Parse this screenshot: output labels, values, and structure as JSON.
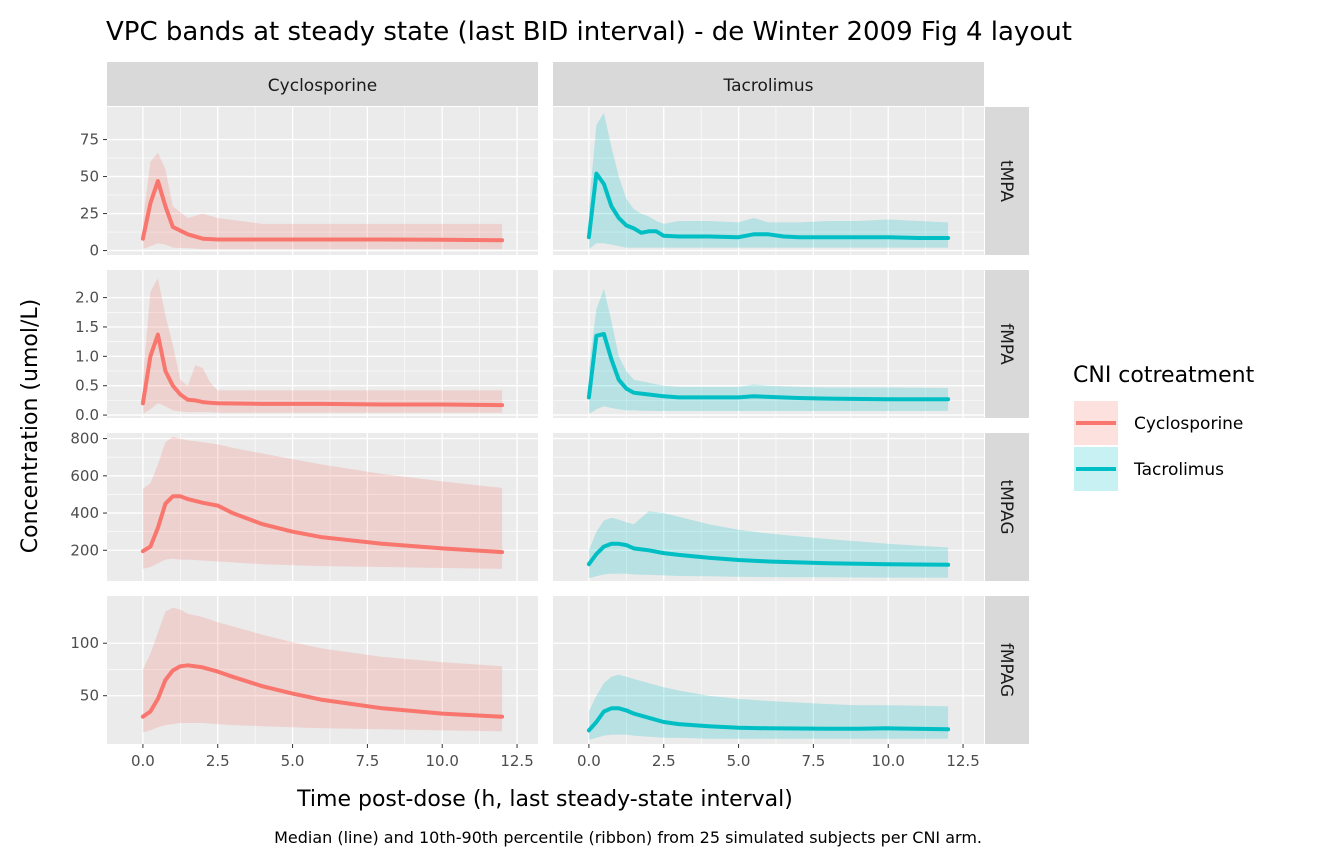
{
  "title": "VPC bands at steady state (last BID interval) - de Winter 2009 Fig 4 layout",
  "caption": "Median (line) and 10th-90th percentile (ribbon) from 25 simulated subjects per CNI arm.",
  "chart_data": {
    "type": "line",
    "xlabel": "Time post-dose (h, last steady-state interval)",
    "ylabel": "Concentration (umol/L)",
    "xlim": [
      -1.2,
      13.2
    ],
    "x_ticks": [
      0,
      2.5,
      5,
      7.5,
      10,
      12.5
    ],
    "x_tick_labels": [
      "0.0",
      "2.5",
      "5.0",
      "7.5",
      "10.0",
      "12.5"
    ],
    "columns": [
      "Cyclosporine",
      "Tacrolimus"
    ],
    "rows": [
      {
        "label": "tMPA",
        "ylim": [
          -3,
          97
        ],
        "ticks": [
          0,
          25,
          50,
          75
        ],
        "tick_labels": [
          "0",
          "25",
          "50",
          "75"
        ]
      },
      {
        "label": "fMPA",
        "ylim": [
          -0.05,
          2.47
        ],
        "ticks": [
          0,
          0.5,
          1.0,
          1.5,
          2.0
        ],
        "tick_labels": [
          "0.0",
          "0.5",
          "1.0",
          "1.5",
          "2.0"
        ]
      },
      {
        "label": "tMPAG",
        "ylim": [
          35,
          830
        ],
        "ticks": [
          200,
          400,
          600,
          800
        ],
        "tick_labels": [
          "200",
          "400",
          "600",
          "800"
        ]
      },
      {
        "label": "fMPAG",
        "ylim": [
          4,
          145
        ],
        "ticks": [
          50,
          100
        ],
        "tick_labels": [
          "50",
          "100"
        ]
      }
    ],
    "legend": {
      "title": "CNI cotreatment",
      "position": "right",
      "entries": [
        {
          "label": "Cyclosporine",
          "color": "#F8766D"
        },
        {
          "label": "Tacrolimus",
          "color": "#00BFC4"
        }
      ]
    },
    "series": [
      {
        "name": "Cyclosporine",
        "analyte": "tMPA",
        "color": "#F8766D",
        "x": [
          0,
          0.25,
          0.5,
          0.75,
          1.0,
          1.5,
          2.0,
          2.5,
          4,
          6,
          8,
          10,
          12
        ],
        "median": [
          8,
          32,
          47,
          30,
          16,
          11,
          8,
          7.5,
          7.5,
          7.5,
          7.5,
          7.3,
          7
        ],
        "p10": [
          1,
          3,
          5,
          4,
          2,
          1.5,
          1,
          1,
          1,
          1,
          1,
          1,
          1
        ],
        "p90": [
          20,
          60,
          66,
          55,
          30,
          22,
          25,
          22,
          18,
          18,
          18,
          18,
          18
        ]
      },
      {
        "name": "Tacrolimus",
        "analyte": "tMPA",
        "color": "#00BFC4",
        "x": [
          0,
          0.25,
          0.5,
          0.75,
          1.0,
          1.25,
          1.5,
          1.75,
          2.0,
          2.25,
          2.5,
          3,
          4,
          5,
          5.5,
          6,
          6.5,
          7,
          8,
          9,
          10,
          11,
          12
        ],
        "median": [
          9,
          52,
          45,
          30,
          22,
          17,
          15,
          12,
          13,
          13,
          10,
          9.5,
          9.5,
          9,
          11,
          11,
          9.5,
          9,
          9,
          9,
          9,
          8.5,
          8.5
        ],
        "p10": [
          1,
          5,
          5,
          4,
          3,
          2,
          2,
          2,
          2,
          2,
          2,
          2,
          2,
          2,
          2,
          2,
          2,
          2,
          2,
          2,
          2,
          2,
          2
        ],
        "p90": [
          30,
          85,
          93,
          70,
          50,
          35,
          28,
          25,
          23,
          20,
          18,
          20,
          20,
          19,
          22,
          19,
          19,
          19,
          20,
          20,
          21,
          20,
          19
        ]
      },
      {
        "name": "Cyclosporine",
        "analyte": "fMPA",
        "color": "#F8766D",
        "x": [
          0,
          0.25,
          0.5,
          0.75,
          1.0,
          1.25,
          1.5,
          1.75,
          2.0,
          2.25,
          2.5,
          4,
          6,
          8,
          10,
          12
        ],
        "median": [
          0.2,
          1.0,
          1.37,
          0.75,
          0.5,
          0.35,
          0.26,
          0.25,
          0.22,
          0.21,
          0.2,
          0.19,
          0.19,
          0.18,
          0.18,
          0.17
        ],
        "p10": [
          0.02,
          0.1,
          0.2,
          0.15,
          0.08,
          0.06,
          0.05,
          0.05,
          0.05,
          0.05,
          0.04,
          0.04,
          0.04,
          0.04,
          0.04,
          0.04
        ],
        "p90": [
          0.6,
          2.1,
          2.33,
          1.7,
          1.2,
          0.6,
          0.5,
          0.85,
          0.8,
          0.55,
          0.42,
          0.42,
          0.42,
          0.42,
          0.42,
          0.42
        ]
      },
      {
        "name": "Tacrolimus",
        "analyte": "fMPA",
        "color": "#00BFC4",
        "x": [
          0,
          0.25,
          0.5,
          0.75,
          1.0,
          1.25,
          1.5,
          2.0,
          2.5,
          3,
          4,
          5,
          5.5,
          6,
          7,
          8,
          10,
          12
        ],
        "median": [
          0.3,
          1.35,
          1.38,
          0.95,
          0.6,
          0.45,
          0.38,
          0.35,
          0.32,
          0.3,
          0.3,
          0.3,
          0.32,
          0.31,
          0.29,
          0.28,
          0.27,
          0.27
        ],
        "p10": [
          0.02,
          0.1,
          0.15,
          0.12,
          0.1,
          0.08,
          0.08,
          0.07,
          0.07,
          0.07,
          0.07,
          0.07,
          0.07,
          0.07,
          0.07,
          0.07,
          0.07,
          0.07
        ],
        "p90": [
          0.8,
          1.8,
          2.15,
          1.6,
          1.0,
          0.75,
          0.6,
          0.55,
          0.5,
          0.48,
          0.48,
          0.48,
          0.52,
          0.5,
          0.48,
          0.47,
          0.47,
          0.46
        ],
        "note": ""
      },
      {
        "name": "Cyclosporine",
        "analyte": "tMPAG",
        "color": "#F8766D",
        "x": [
          0,
          0.25,
          0.5,
          0.75,
          1.0,
          1.25,
          1.5,
          2.0,
          2.5,
          3,
          4,
          5,
          6,
          8,
          10,
          12
        ],
        "median": [
          195,
          220,
          320,
          450,
          490,
          490,
          475,
          455,
          440,
          400,
          340,
          300,
          270,
          235,
          210,
          190
        ],
        "p10": [
          100,
          110,
          130,
          150,
          155,
          150,
          150,
          145,
          140,
          135,
          125,
          120,
          115,
          110,
          105,
          100
        ],
        "p90": [
          530,
          560,
          660,
          780,
          810,
          800,
          790,
          780,
          770,
          750,
          720,
          690,
          660,
          610,
          570,
          535
        ]
      },
      {
        "name": "Tacrolimus",
        "analyte": "tMPAG",
        "color": "#00BFC4",
        "x": [
          0,
          0.25,
          0.5,
          0.75,
          1.0,
          1.25,
          1.5,
          2.0,
          2.5,
          3,
          4,
          5,
          6,
          8,
          10,
          12
        ],
        "median": [
          125,
          180,
          220,
          235,
          235,
          228,
          210,
          200,
          185,
          175,
          160,
          148,
          140,
          130,
          125,
          122
        ],
        "p10": [
          50,
          60,
          70,
          75,
          75,
          75,
          70,
          68,
          65,
          62,
          60,
          58,
          56,
          55,
          53,
          52
        ],
        "p90": [
          200,
          300,
          360,
          375,
          365,
          350,
          340,
          410,
          400,
          380,
          340,
          310,
          290,
          260,
          235,
          215
        ]
      },
      {
        "name": "Cyclosporine",
        "analyte": "fMPAG",
        "color": "#F8766D",
        "x": [
          0,
          0.25,
          0.5,
          0.75,
          1.0,
          1.25,
          1.5,
          2.0,
          2.5,
          3,
          4,
          5,
          6,
          8,
          10,
          12
        ],
        "median": [
          30,
          35,
          47,
          65,
          74,
          78,
          79,
          77,
          73,
          68,
          59,
          52,
          46,
          38,
          33,
          30
        ],
        "p10": [
          15,
          17,
          20,
          22,
          23,
          24,
          24,
          24,
          23,
          22,
          21,
          20,
          19,
          18,
          17,
          16
        ],
        "p90": [
          75,
          90,
          110,
          130,
          134,
          132,
          128,
          125,
          120,
          116,
          108,
          101,
          95,
          87,
          82,
          78
        ]
      },
      {
        "name": "Tacrolimus",
        "analyte": "fMPAG",
        "color": "#00BFC4",
        "x": [
          0,
          0.25,
          0.5,
          0.75,
          1.0,
          1.25,
          1.5,
          2.0,
          2.5,
          3,
          4,
          5,
          6,
          8,
          9,
          10,
          12
        ],
        "median": [
          17,
          25,
          35,
          38,
          38,
          36,
          33,
          29,
          25,
          23,
          21,
          19.5,
          19,
          18.5,
          18.5,
          19,
          18
        ],
        "p10": [
          8,
          10,
          12,
          13,
          13,
          13,
          12,
          11,
          10,
          10,
          9,
          9,
          9,
          9,
          9,
          9,
          9
        ],
        "p90": [
          35,
          50,
          62,
          68,
          70,
          68,
          66,
          62,
          58,
          55,
          50,
          47,
          45,
          42,
          41,
          41,
          40
        ]
      }
    ]
  }
}
